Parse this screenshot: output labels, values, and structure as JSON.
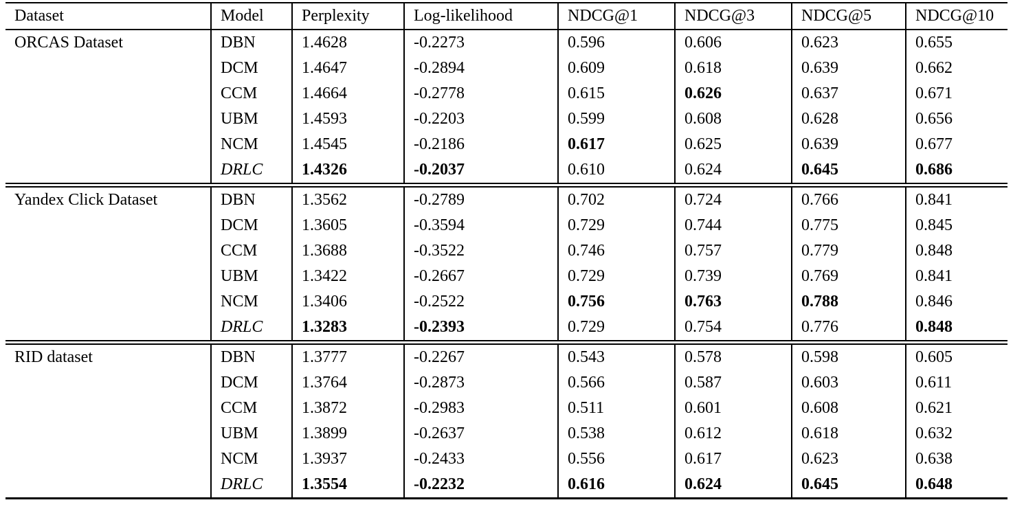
{
  "table": {
    "columns": [
      "Dataset",
      "Model",
      "Perplexity",
      "Log-likelihood",
      "NDCG@1",
      "NDCG@3",
      "NDCG@5",
      "NDCG@10"
    ],
    "sections": [
      {
        "dataset": "ORCAS Dataset",
        "rows": [
          {
            "model": "DBN",
            "italic": false,
            "values": [
              "1.4628",
              "-0.2273",
              "0.596",
              "0.606",
              "0.623",
              "0.655"
            ],
            "bold": [
              false,
              false,
              false,
              false,
              false,
              false
            ]
          },
          {
            "model": "DCM",
            "italic": false,
            "values": [
              "1.4647",
              "-0.2894",
              "0.609",
              "0.618",
              "0.639",
              "0.662"
            ],
            "bold": [
              false,
              false,
              false,
              false,
              false,
              false
            ]
          },
          {
            "model": "CCM",
            "italic": false,
            "values": [
              "1.4664",
              "-0.2778",
              "0.615",
              "0.626",
              "0.637",
              "0.671"
            ],
            "bold": [
              false,
              false,
              false,
              true,
              false,
              false
            ]
          },
          {
            "model": "UBM",
            "italic": false,
            "values": [
              "1.4593",
              "-0.2203",
              "0.599",
              "0.608",
              "0.628",
              "0.656"
            ],
            "bold": [
              false,
              false,
              false,
              false,
              false,
              false
            ]
          },
          {
            "model": "NCM",
            "italic": false,
            "values": [
              "1.4545",
              "-0.2186",
              "0.617",
              "0.625",
              "0.639",
              "0.677"
            ],
            "bold": [
              false,
              false,
              true,
              false,
              false,
              false
            ]
          },
          {
            "model": "DRLC",
            "italic": true,
            "values": [
              "1.4326",
              "-0.2037",
              "0.610",
              "0.624",
              "0.645",
              "0.686"
            ],
            "bold": [
              true,
              true,
              false,
              false,
              true,
              true
            ]
          }
        ]
      },
      {
        "dataset": "Yandex Click Dataset",
        "rows": [
          {
            "model": "DBN",
            "italic": false,
            "values": [
              "1.3562",
              "-0.2789",
              "0.702",
              "0.724",
              "0.766",
              "0.841"
            ],
            "bold": [
              false,
              false,
              false,
              false,
              false,
              false
            ]
          },
          {
            "model": "DCM",
            "italic": false,
            "values": [
              "1.3605",
              "-0.3594",
              "0.729",
              "0.744",
              "0.775",
              "0.845"
            ],
            "bold": [
              false,
              false,
              false,
              false,
              false,
              false
            ]
          },
          {
            "model": "CCM",
            "italic": false,
            "values": [
              "1.3688",
              "-0.3522",
              "0.746",
              "0.757",
              "0.779",
              "0.848"
            ],
            "bold": [
              false,
              false,
              false,
              false,
              false,
              false
            ]
          },
          {
            "model": "UBM",
            "italic": false,
            "values": [
              "1.3422",
              "-0.2667",
              "0.729",
              "0.739",
              "0.769",
              "0.841"
            ],
            "bold": [
              false,
              false,
              false,
              false,
              false,
              false
            ]
          },
          {
            "model": "NCM",
            "italic": false,
            "values": [
              "1.3406",
              "-0.2522",
              "0.756",
              "0.763",
              "0.788",
              "0.846"
            ],
            "bold": [
              false,
              false,
              true,
              true,
              true,
              false
            ]
          },
          {
            "model": "DRLC",
            "italic": true,
            "values": [
              "1.3283",
              "-0.2393",
              "0.729",
              "0.754",
              "0.776",
              "0.848"
            ],
            "bold": [
              true,
              true,
              false,
              false,
              false,
              true
            ]
          }
        ]
      },
      {
        "dataset": "RID dataset",
        "rows": [
          {
            "model": "DBN",
            "italic": false,
            "values": [
              "1.3777",
              "-0.2267",
              "0.543",
              "0.578",
              "0.598",
              "0.605"
            ],
            "bold": [
              false,
              false,
              false,
              false,
              false,
              false
            ]
          },
          {
            "model": "DCM",
            "italic": false,
            "values": [
              "1.3764",
              "-0.2873",
              "0.566",
              "0.587",
              "0.603",
              "0.611"
            ],
            "bold": [
              false,
              false,
              false,
              false,
              false,
              false
            ]
          },
          {
            "model": "CCM",
            "italic": false,
            "values": [
              "1.3872",
              "-0.2983",
              "0.511",
              "0.601",
              "0.608",
              "0.621"
            ],
            "bold": [
              false,
              false,
              false,
              false,
              false,
              false
            ]
          },
          {
            "model": "UBM",
            "italic": false,
            "values": [
              "1.3899",
              "-0.2637",
              "0.538",
              "0.612",
              "0.618",
              "0.632"
            ],
            "bold": [
              false,
              false,
              false,
              false,
              false,
              false
            ]
          },
          {
            "model": "NCM",
            "italic": false,
            "values": [
              "1.3937",
              "-0.2433",
              "0.556",
              "0.617",
              "0.623",
              "0.638"
            ],
            "bold": [
              false,
              false,
              false,
              false,
              false,
              false
            ]
          },
          {
            "model": "DRLC",
            "italic": true,
            "values": [
              "1.3554",
              "-0.2232",
              "0.616",
              "0.624",
              "0.645",
              "0.648"
            ],
            "bold": [
              true,
              true,
              true,
              true,
              true,
              true
            ]
          }
        ]
      }
    ]
  }
}
